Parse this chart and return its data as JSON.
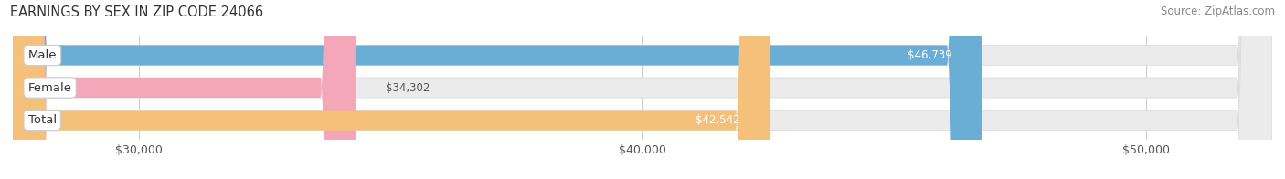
{
  "title": "EARNINGS BY SEX IN ZIP CODE 24066",
  "source": "Source: ZipAtlas.com",
  "categories": [
    "Male",
    "Female",
    "Total"
  ],
  "values": [
    46739,
    34302,
    42542
  ],
  "bar_colors": [
    "#6aaed6",
    "#f4a7b9",
    "#f5c07a"
  ],
  "x_min": 27500,
  "x_max": 52500,
  "x_ticks": [
    30000,
    40000,
    50000
  ],
  "x_tick_labels": [
    "$30,000",
    "$40,000",
    "$50,000"
  ],
  "value_labels": [
    "$46,739",
    "$34,302",
    "$42,542"
  ],
  "label_inside": [
    true,
    false,
    true
  ],
  "label_colors": [
    "white",
    "#555555",
    "white"
  ],
  "background_color": "#ffffff",
  "bar_bg_color": "#ebebeb",
  "title_fontsize": 10.5,
  "source_fontsize": 8.5,
  "bar_height": 0.62,
  "figsize": [
    14.06,
    1.96
  ],
  "dpi": 100
}
